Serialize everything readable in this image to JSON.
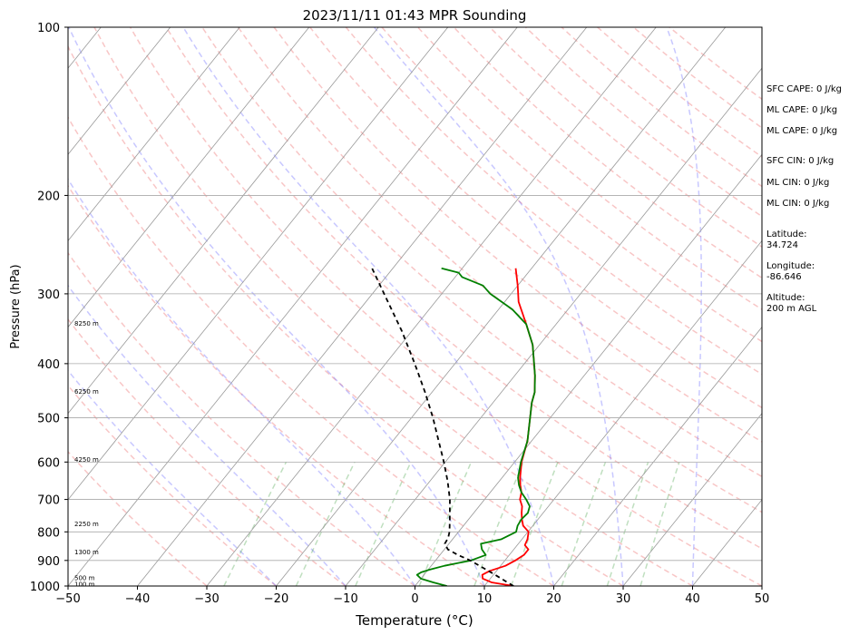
{
  "chart_data": {
    "type": "line",
    "title": "2023/11/11 01:43 MPR Sounding",
    "xlabel": "Temperature (°C)",
    "ylabel": "Pressure (hPa)",
    "xlim": [
      -50,
      50
    ],
    "ylim": [
      1000,
      100
    ],
    "y_scale": "log",
    "grid": true,
    "skew_t": true,
    "x_ticks": [
      "−50",
      "−40",
      "−30",
      "−20",
      "−10",
      "0",
      "10",
      "20",
      "30",
      "40",
      "50"
    ],
    "y_ticks": [
      "1000",
      "900",
      "800",
      "700",
      "600",
      "500",
      "400",
      "300",
      "200",
      "100"
    ],
    "height_labels": [
      {
        "p": 990,
        "label": "100 m"
      },
      {
        "p": 965,
        "label": "500 m"
      },
      {
        "p": 868,
        "label": "1300 m"
      },
      {
        "p": 772,
        "label": "2250 m"
      },
      {
        "p": 592,
        "label": "4250 m"
      },
      {
        "p": 448,
        "label": "6250 m"
      },
      {
        "p": 338,
        "label": "8250 m"
      }
    ],
    "series": [
      {
        "role": "temperature",
        "color": "#ff0000",
        "points": [
          [
            1000,
            14.2
          ],
          [
            985,
            10.6
          ],
          [
            970,
            8.9
          ],
          [
            955,
            8.4
          ],
          [
            940,
            9.0
          ],
          [
            920,
            10.7
          ],
          [
            900,
            11.5
          ],
          [
            880,
            12.1
          ],
          [
            860,
            12.1
          ],
          [
            845,
            11.1
          ],
          [
            825,
            10.8
          ],
          [
            800,
            10.1
          ],
          [
            780,
            8.6
          ],
          [
            760,
            7.7
          ],
          [
            740,
            6.9
          ],
          [
            720,
            6.2
          ],
          [
            700,
            5.1
          ],
          [
            680,
            4.5
          ],
          [
            660,
            3.5
          ],
          [
            640,
            2.6
          ],
          [
            600,
            1.0
          ],
          [
            550,
            -0.6
          ],
          [
            500,
            -2.9
          ],
          [
            470,
            -4.4
          ],
          [
            450,
            -5.2
          ],
          [
            420,
            -7.1
          ],
          [
            400,
            -8.6
          ],
          [
            370,
            -11.0
          ],
          [
            340,
            -14.3
          ],
          [
            310,
            -18.0
          ],
          [
            290,
            -20.0
          ],
          [
            270,
            -22.3
          ]
        ]
      },
      {
        "role": "dewpoint",
        "color": "#008000",
        "points": [
          [
            1000,
            4.6
          ],
          [
            985,
            2.2
          ],
          [
            970,
            0.0
          ],
          [
            955,
            -1.0
          ],
          [
            945,
            -0.7
          ],
          [
            935,
            0.2
          ],
          [
            920,
            1.9
          ],
          [
            900,
            5.1
          ],
          [
            880,
            6.6
          ],
          [
            860,
            5.4
          ],
          [
            840,
            4.6
          ],
          [
            825,
            7.0
          ],
          [
            800,
            8.3
          ],
          [
            780,
            7.8
          ],
          [
            760,
            7.6
          ],
          [
            740,
            7.8
          ],
          [
            720,
            7.3
          ],
          [
            700,
            6.0
          ],
          [
            680,
            4.5
          ],
          [
            660,
            3.3
          ],
          [
            640,
            2.3
          ],
          [
            600,
            0.9
          ],
          [
            550,
            -0.6
          ],
          [
            500,
            -2.9
          ],
          [
            470,
            -4.4
          ],
          [
            450,
            -5.2
          ],
          [
            420,
            -7.1
          ],
          [
            400,
            -8.6
          ],
          [
            370,
            -11.0
          ],
          [
            340,
            -14.3
          ],
          [
            320,
            -18.0
          ],
          [
            300,
            -23.0
          ],
          [
            290,
            -25.0
          ],
          [
            280,
            -29.0
          ],
          [
            275,
            -30.0
          ],
          [
            270,
            -33.0
          ]
        ]
      },
      {
        "role": "parcel",
        "color": "#000000",
        "dashed": true,
        "points": [
          [
            1000,
            14.2
          ],
          [
            950,
            9.8
          ],
          [
            900,
            5.0
          ],
          [
            880,
            2.6
          ],
          [
            860,
            0.5
          ],
          [
            840,
            -0.6
          ],
          [
            820,
            -0.8
          ],
          [
            800,
            -1.3
          ],
          [
            760,
            -2.7
          ],
          [
            700,
            -5.0
          ],
          [
            650,
            -7.4
          ],
          [
            600,
            -10.2
          ],
          [
            550,
            -13.4
          ],
          [
            500,
            -16.9
          ],
          [
            450,
            -21.0
          ],
          [
            400,
            -25.8
          ],
          [
            350,
            -31.4
          ],
          [
            300,
            -38.3
          ],
          [
            270,
            -43.0
          ]
        ]
      }
    ]
  },
  "stats": {
    "sfc_cape": "SFC CAPE: 0 J/kg",
    "ml_cape_1": "ML CAPE: 0 J/kg",
    "ml_cape_2": "ML CAPE: 0 J/kg",
    "sfc_cin": "SFC CIN: 0 J/kg",
    "ml_cin_1": "ML CIN: 0 J/kg",
    "ml_cin_2": "ML CIN: 0 J/kg",
    "latitude": "Latitude:\n34.724",
    "longitude": "Longitude:\n-86.646",
    "altitude": "Altitude:\n200 m AGL"
  }
}
